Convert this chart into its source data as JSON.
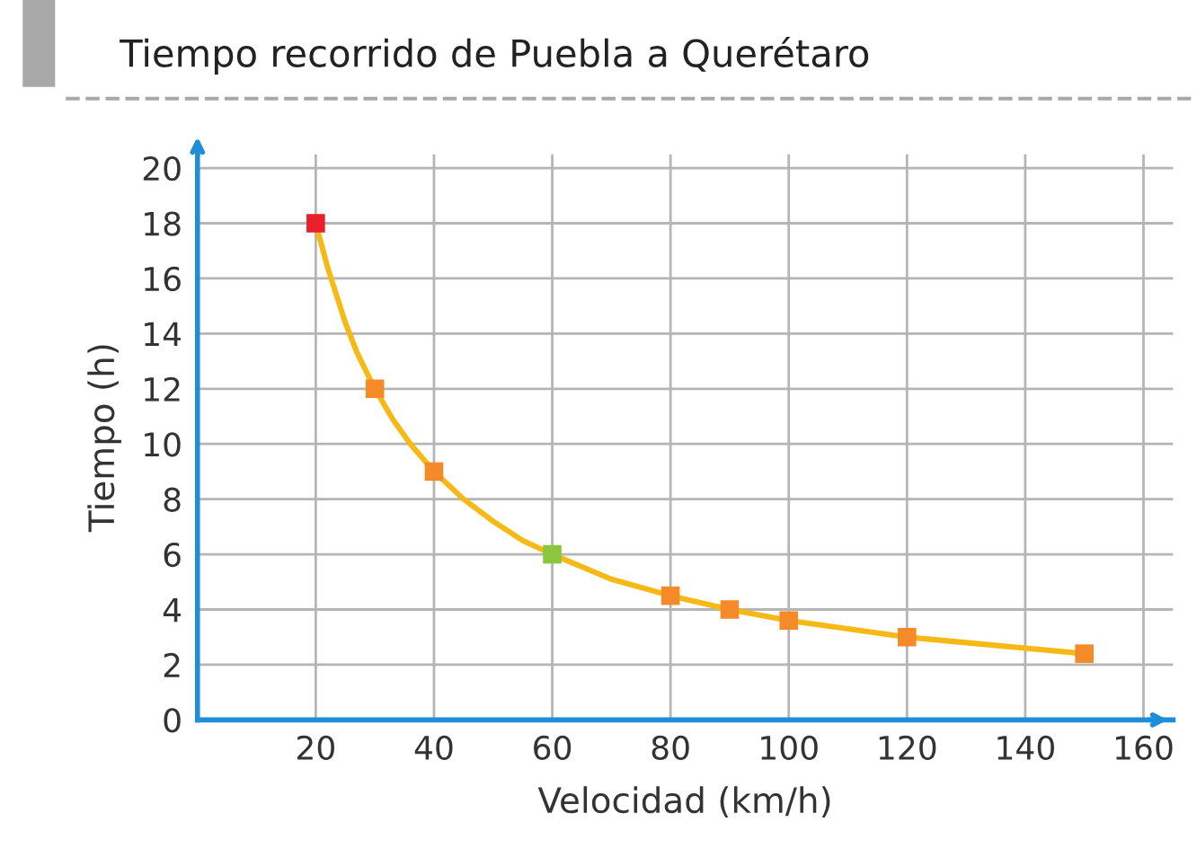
{
  "chart_data": {
    "type": "scatter",
    "title": "Tiempo recorrido de Puebla a Querétaro",
    "xlabel": "Velocidad (km/h)",
    "ylabel": "Tiempo (h)",
    "x": [
      20,
      30,
      40,
      60,
      80,
      90,
      100,
      120,
      150
    ],
    "series": [
      {
        "type": "line",
        "color": "#f7b916",
        "x": [
          20,
          22,
          25,
          27,
          30,
          33,
          36,
          40,
          45,
          50,
          55,
          60,
          70,
          80,
          90,
          100,
          110,
          120,
          130,
          140,
          150
        ],
        "values": [
          18,
          16.4,
          14.4,
          13.3,
          12,
          10.9,
          10,
          9,
          8,
          7.2,
          6.5,
          6,
          5.1,
          4.5,
          4,
          3.6,
          3.3,
          3,
          2.8,
          2.6,
          2.4
        ]
      },
      {
        "marker": "square",
        "color": "#f58a28",
        "colors": [
          "#e8202a",
          "#f58a28",
          "#f58a28",
          "#8cc63f",
          "#f58a28",
          "#f58a28",
          "#f58a28",
          "#f58a28",
          "#f58a28"
        ],
        "values": [
          18,
          12,
          9,
          6,
          4.5,
          4,
          3.6,
          3,
          2.4
        ]
      }
    ],
    "line_style": "solid",
    "xlim": [
      0,
      165
    ],
    "xticks": [
      20,
      40,
      60,
      80,
      100,
      120,
      140,
      160
    ],
    "ylim": [
      0,
      20.5
    ],
    "yticks": [
      0,
      2,
      4,
      6,
      8,
      10,
      12,
      14,
      16,
      18,
      20
    ],
    "grid": true
  }
}
